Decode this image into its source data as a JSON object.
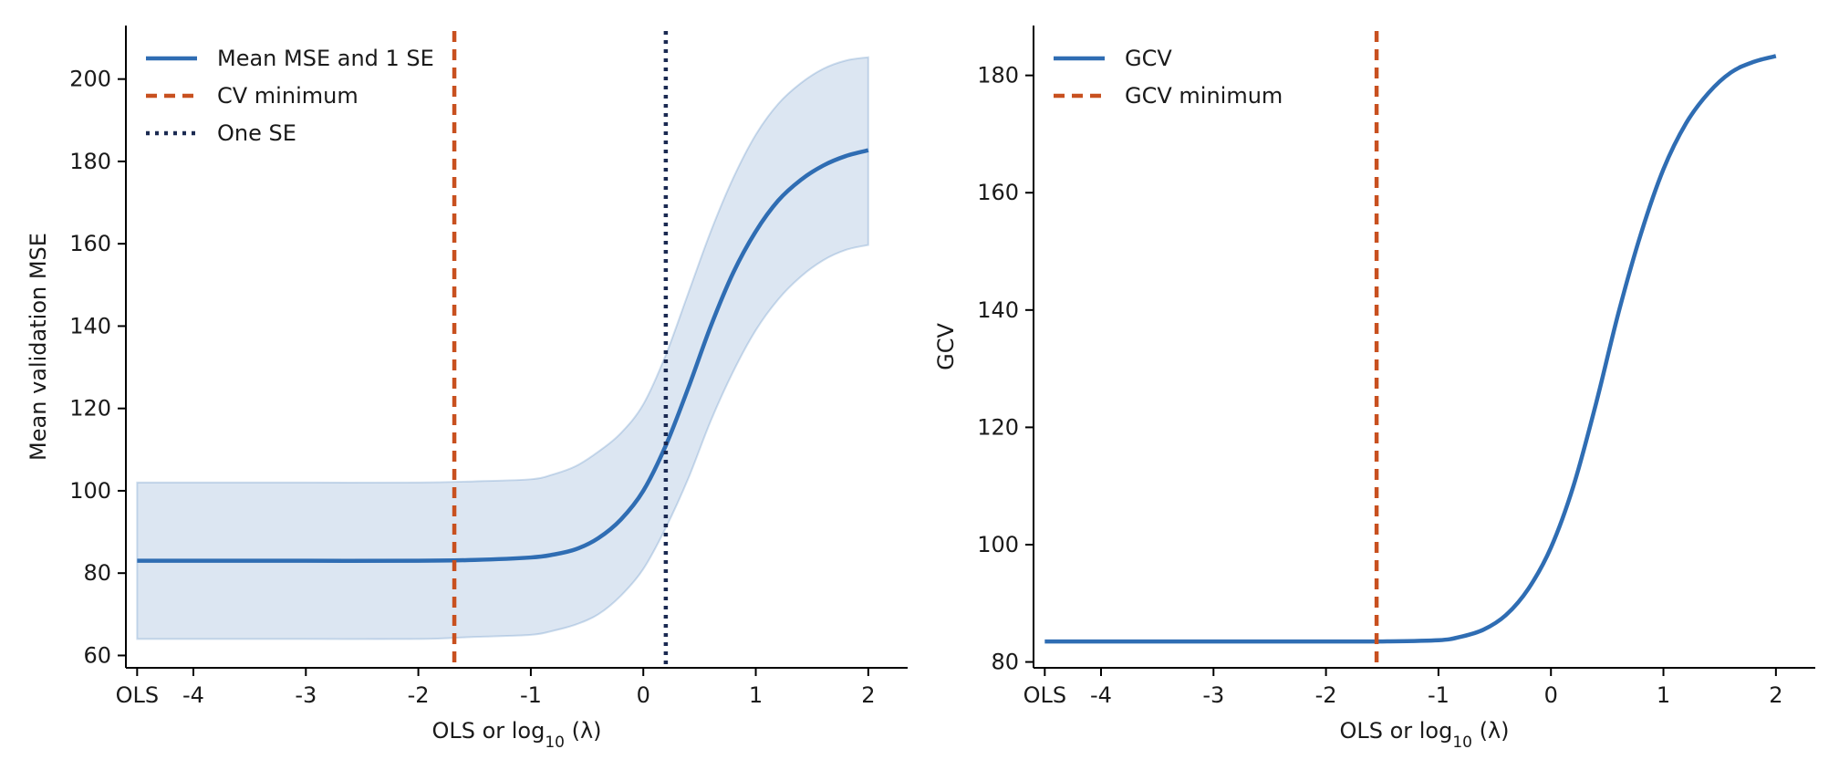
{
  "chart_data": [
    {
      "type": "line",
      "xlabel_main": "OLS or log",
      "xlabel_sub": "10",
      "xlabel_tail": "(λ)",
      "ylabel": "Mean validation MSE",
      "xlim": [
        -4.6,
        2.35
      ],
      "ylim": [
        57,
        213
      ],
      "x_ticks": [
        {
          "x": -4.5,
          "label": "OLS"
        },
        {
          "x": -4,
          "label": "-4"
        },
        {
          "x": -3,
          "label": "-3"
        },
        {
          "x": -2,
          "label": "-2"
        },
        {
          "x": -1,
          "label": "-1"
        },
        {
          "x": 0,
          "label": "0"
        },
        {
          "x": 1,
          "label": "1"
        },
        {
          "x": 2,
          "label": "2"
        }
      ],
      "y_ticks": [
        {
          "y": 60,
          "label": "60"
        },
        {
          "y": 80,
          "label": "80"
        },
        {
          "y": 100,
          "label": "100"
        },
        {
          "y": 120,
          "label": "120"
        },
        {
          "y": 140,
          "label": "140"
        },
        {
          "y": 160,
          "label": "160"
        },
        {
          "y": 180,
          "label": "180"
        },
        {
          "y": 200,
          "label": "200"
        }
      ],
      "series": [
        {
          "name": "Mean MSE and 1 SE",
          "kind": "line",
          "color": "#2f6db3",
          "x": [
            -4.5,
            -4,
            -3,
            -2,
            -1.5,
            -1,
            -0.8,
            -0.6,
            -0.4,
            -0.2,
            0,
            0.2,
            0.4,
            0.6,
            0.8,
            1,
            1.2,
            1.4,
            1.6,
            1.8,
            2
          ],
          "y": [
            83,
            83,
            83,
            83,
            83.2,
            83.8,
            84.5,
            85.8,
            88.5,
            93,
            100,
            111,
            125,
            140,
            153,
            163,
            170.5,
            175.5,
            179,
            181.3,
            182.7
          ],
          "lower": [
            64,
            64,
            64,
            64,
            64.5,
            65,
            66,
            67.5,
            70,
            74.5,
            81,
            91,
            103,
            117,
            129,
            139,
            146.5,
            152,
            156,
            158.5,
            159.7
          ],
          "upper": [
            102,
            102,
            102,
            102,
            102.3,
            102.8,
            104,
            106,
            109.5,
            114,
            121,
            133,
            148,
            163,
            176,
            186.5,
            194,
            199,
            202.5,
            204.5,
            205.3
          ]
        },
        {
          "name": "CV minimum",
          "kind": "vline",
          "color": "#c8501f",
          "dash": "12,8",
          "x": -1.68
        },
        {
          "name": "One SE",
          "kind": "vline",
          "color": "#1b2a52",
          "dash": "4,6",
          "x": 0.2
        }
      ],
      "legend": "top-left"
    },
    {
      "type": "line",
      "xlabel_main": "OLS or log",
      "xlabel_sub": "10",
      "xlabel_tail": "(λ)",
      "ylabel": "GCV",
      "xlim": [
        -4.6,
        2.35
      ],
      "ylim": [
        79,
        188.5
      ],
      "x_ticks": [
        {
          "x": -4.5,
          "label": "OLS"
        },
        {
          "x": -4,
          "label": "-4"
        },
        {
          "x": -3,
          "label": "-3"
        },
        {
          "x": -2,
          "label": "-2"
        },
        {
          "x": -1,
          "label": "-1"
        },
        {
          "x": 0,
          "label": "0"
        },
        {
          "x": 1,
          "label": "1"
        },
        {
          "x": 2,
          "label": "2"
        }
      ],
      "y_ticks": [
        {
          "y": 80,
          "label": "80"
        },
        {
          "y": 100,
          "label": "100"
        },
        {
          "y": 120,
          "label": "120"
        },
        {
          "y": 140,
          "label": "140"
        },
        {
          "y": 160,
          "label": "160"
        },
        {
          "y": 180,
          "label": "180"
        }
      ],
      "series": [
        {
          "name": "GCV",
          "kind": "line",
          "color": "#2f6db3",
          "x": [
            -4.5,
            -4,
            -3,
            -2,
            -1.5,
            -1,
            -0.8,
            -0.6,
            -0.4,
            -0.2,
            0,
            0.2,
            0.4,
            0.6,
            0.8,
            1,
            1.2,
            1.4,
            1.6,
            1.8,
            2
          ],
          "y": [
            83.5,
            83.5,
            83.5,
            83.5,
            83.5,
            83.7,
            84.3,
            85.5,
            88,
            92.5,
            99.5,
            110,
            124,
            139.5,
            153,
            164,
            171.8,
            177,
            180.5,
            182.3,
            183.3
          ]
        },
        {
          "name": "GCV minimum",
          "kind": "vline",
          "color": "#c8501f",
          "dash": "12,8",
          "x": -1.55
        }
      ],
      "legend": "top-left"
    }
  ]
}
